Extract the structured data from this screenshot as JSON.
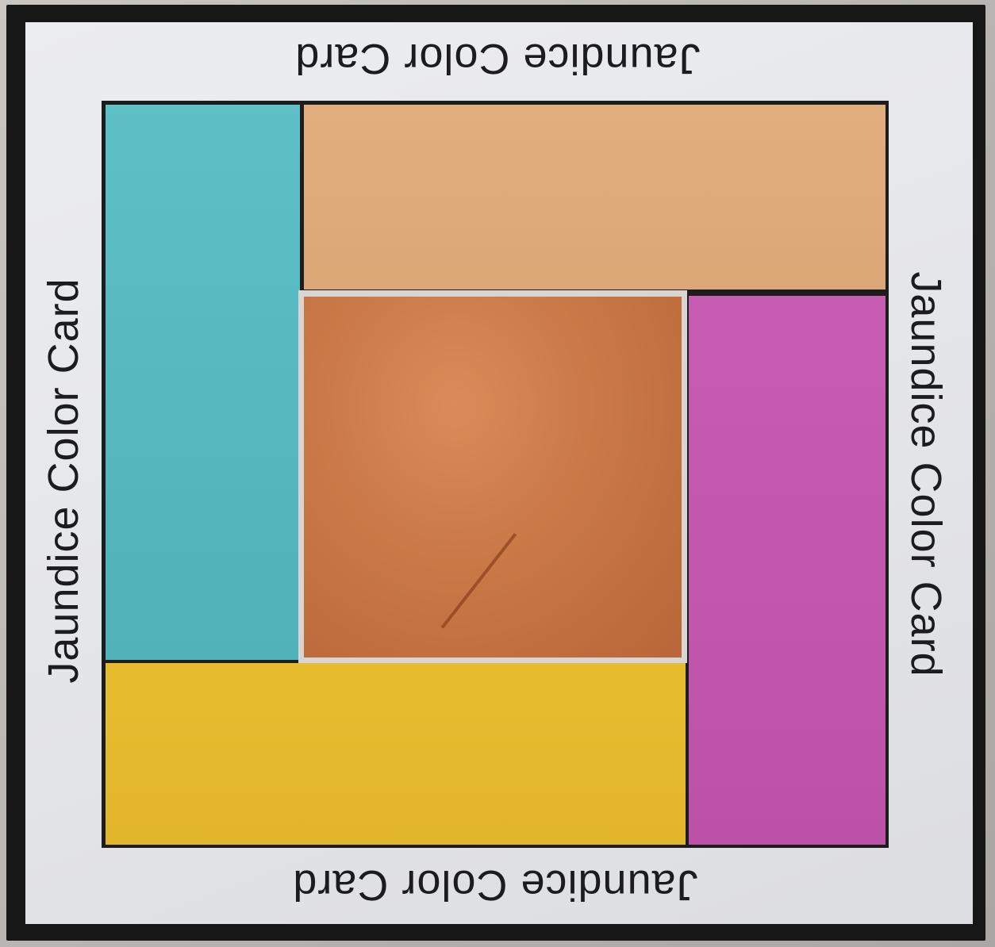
{
  "card": {
    "label_top": "Jaundice Color Card",
    "label_bottom": "Jaundice Color Card",
    "label_left": "Jaundice Color Card",
    "label_right": "Jaundice Color Card"
  },
  "swatches": {
    "cyan": "#55b9bf",
    "tan": "#dca776",
    "magenta": "#c157ad",
    "yellow": "#e2b52b",
    "skin": "#c97846"
  },
  "colors": {
    "border": "#171717",
    "card_face": "#e4e5e9",
    "text": "#1c1c1e"
  }
}
